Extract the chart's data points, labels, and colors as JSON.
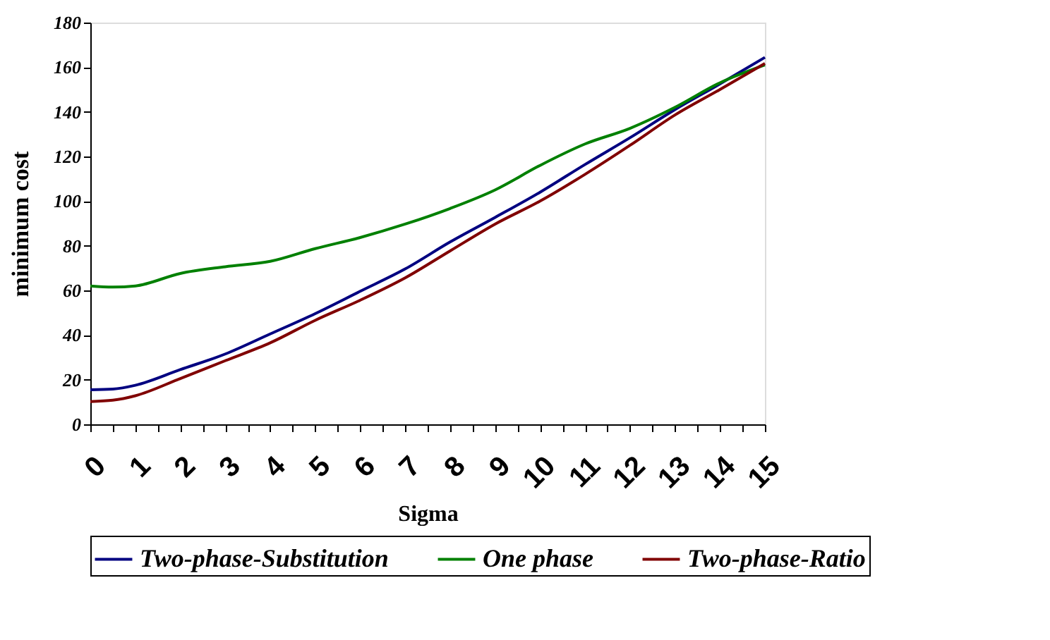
{
  "chart_data": {
    "type": "line",
    "xlabel": "Sigma",
    "ylabel": "minimum cost",
    "x": [
      0,
      0.5,
      1,
      2,
      3,
      4,
      5,
      6,
      7,
      8,
      9,
      10,
      11,
      12,
      13,
      14,
      15
    ],
    "series": [
      {
        "name": "Two-phase-Substitution",
        "color": "#000080",
        "values": [
          15.5,
          15.8,
          17.5,
          24.5,
          31.5,
          40.5,
          49.6,
          59.6,
          69.6,
          81.7,
          92.7,
          104,
          116.4,
          128.4,
          141,
          152.5,
          164.4
        ]
      },
      {
        "name": "One phase",
        "color": "#008000",
        "values": [
          62,
          61.5,
          62,
          67.6,
          70.6,
          73,
          78.7,
          83.7,
          89.7,
          96.7,
          105,
          116,
          125.6,
          132.6,
          142,
          153,
          161
        ]
      },
      {
        "name": "Two-phase-Ratio",
        "color": "#800000",
        "values": [
          10.2,
          10.8,
          12.8,
          20.5,
          28.5,
          36.5,
          46.6,
          55.6,
          65.6,
          77.7,
          89.7,
          100,
          112,
          125,
          138.6,
          150,
          161.7
        ]
      }
    ],
    "xlim": [
      0,
      15
    ],
    "xticks": [
      0,
      {
        "value": 0.5,
        "label": null
      },
      1,
      {
        "value": 1.5,
        "label": null
      },
      2,
      {
        "value": 2.5,
        "label": null
      },
      3,
      {
        "value": 3.5,
        "label": null
      },
      4,
      {
        "value": 4.5,
        "label": null
      },
      5,
      {
        "value": 5.5,
        "label": null
      },
      6,
      {
        "value": 6.5,
        "label": null
      },
      7,
      {
        "value": 7.5,
        "label": null
      },
      8,
      {
        "value": 8.5,
        "label": null
      },
      9,
      {
        "value": 9.5,
        "label": null
      },
      10,
      {
        "value": 10.5,
        "label": null
      },
      11,
      {
        "value": 11.5,
        "label": null
      },
      12,
      {
        "value": 12.5,
        "label": null
      },
      13,
      {
        "value": 13.5,
        "label": null
      },
      14,
      {
        "value": 14.5,
        "label": null
      },
      15
    ],
    "ylim": [
      0,
      180
    ],
    "yticks": [
      0,
      20,
      40,
      60,
      80,
      100,
      120,
      140,
      160,
      180
    ],
    "grid": false,
    "legend": "bottom",
    "marker": "none",
    "line_style": "solid"
  }
}
